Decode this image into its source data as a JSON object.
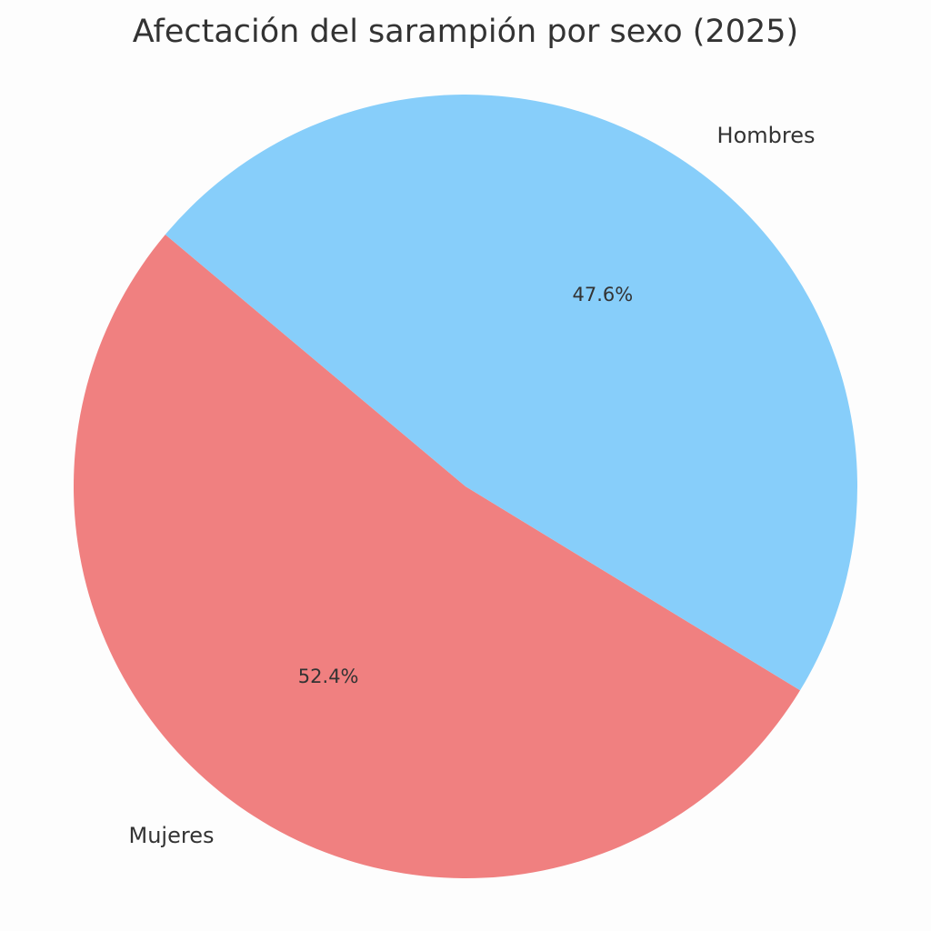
{
  "chart_data": {
    "type": "pie",
    "title": "Afectación del sarampión por sexo (2025)",
    "categories": [
      "Mujeres",
      "Hombres"
    ],
    "values": [
      52.4,
      47.6
    ],
    "value_labels": [
      "52.4%",
      "47.6%"
    ],
    "colors": [
      "#f08080",
      "#87cefa"
    ],
    "start_angle": 140,
    "counterclock": true
  }
}
